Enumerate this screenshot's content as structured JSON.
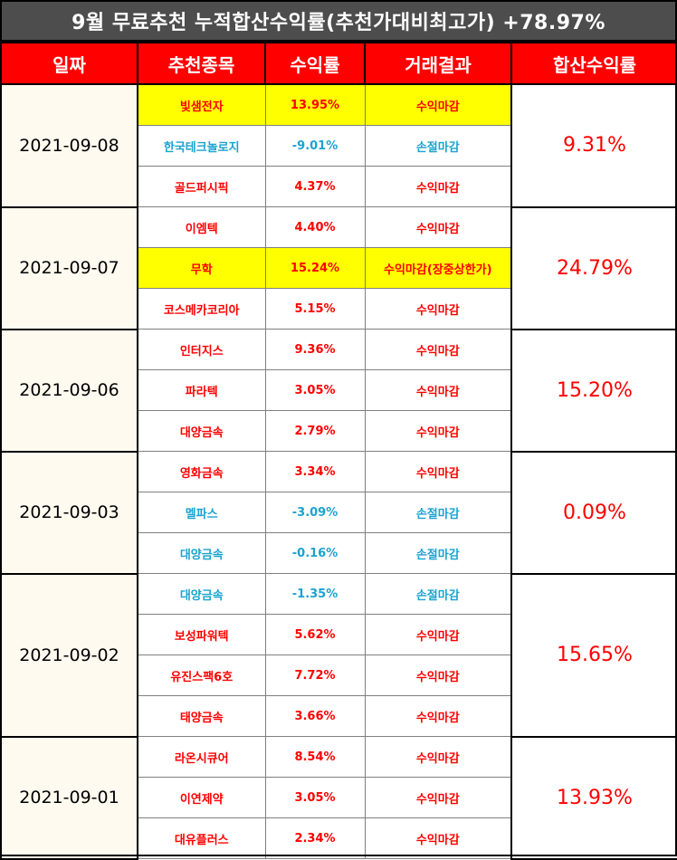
{
  "title": "9월 무료추천 누적합산수익률(추천가대비최고가) +78.97%",
  "headers": [
    "일짜",
    "추천종목",
    "수익률",
    "거래결과",
    "합산수익률"
  ],
  "colors": {
    "title_bg": "#4d4d4d",
    "header_bg": "#ff0000",
    "profit": "#ff0000",
    "loss": "#1aa3d1",
    "highlight": "#ffff00"
  },
  "groups": [
    {
      "date": "2021-09-08",
      "total": "9.31%",
      "rows": [
        {
          "name": "빛샘전자",
          "rate": "13.95%",
          "result": "수익마감",
          "type": "profit",
          "highlight": true
        },
        {
          "name": "한국테크놀로지",
          "rate": "-9.01%",
          "result": "손절마감",
          "type": "loss",
          "highlight": false
        },
        {
          "name": "골드퍼시픽",
          "rate": "4.37%",
          "result": "수익마감",
          "type": "profit",
          "highlight": false
        }
      ]
    },
    {
      "date": "2021-09-07",
      "total": "24.79%",
      "rows": [
        {
          "name": "이엠텍",
          "rate": "4.40%",
          "result": "수익마감",
          "type": "profit",
          "highlight": false
        },
        {
          "name": "무학",
          "rate": "15.24%",
          "result": "수익마감(장중상한가)",
          "type": "profit",
          "highlight": true
        },
        {
          "name": "코스메카코리아",
          "rate": "5.15%",
          "result": "수익마감",
          "type": "profit",
          "highlight": false
        }
      ]
    },
    {
      "date": "2021-09-06",
      "total": "15.20%",
      "rows": [
        {
          "name": "인터지스",
          "rate": "9.36%",
          "result": "수익마감",
          "type": "profit",
          "highlight": false
        },
        {
          "name": "파라텍",
          "rate": "3.05%",
          "result": "수익마감",
          "type": "profit",
          "highlight": false
        },
        {
          "name": "대양금속",
          "rate": "2.79%",
          "result": "수익마감",
          "type": "profit",
          "highlight": false
        }
      ]
    },
    {
      "date": "2021-09-03",
      "total": "0.09%",
      "rows": [
        {
          "name": "영화금속",
          "rate": "3.34%",
          "result": "수익마감",
          "type": "profit",
          "highlight": false
        },
        {
          "name": "멜파스",
          "rate": "-3.09%",
          "result": "손절마감",
          "type": "loss",
          "highlight": false
        },
        {
          "name": "대양금속",
          "rate": "-0.16%",
          "result": "손절마감",
          "type": "loss",
          "highlight": false
        }
      ]
    },
    {
      "date": "2021-09-02",
      "total": "15.65%",
      "rows": [
        {
          "name": "대양금속",
          "rate": "-1.35%",
          "result": "손절마감",
          "type": "loss",
          "highlight": false
        },
        {
          "name": "보성파워텍",
          "rate": "5.62%",
          "result": "수익마감",
          "type": "profit",
          "highlight": false
        },
        {
          "name": "유진스팩6호",
          "rate": "7.72%",
          "result": "수익마감",
          "type": "profit",
          "highlight": false
        },
        {
          "name": "태양금속",
          "rate": "3.66%",
          "result": "수익마감",
          "type": "profit",
          "highlight": false
        }
      ]
    },
    {
      "date": "2021-09-01",
      "total": "13.93%",
      "rows": [
        {
          "name": "라온시큐어",
          "rate": "8.54%",
          "result": "수익마감",
          "type": "profit",
          "highlight": false
        },
        {
          "name": "이연제약",
          "rate": "3.05%",
          "result": "수익마감",
          "type": "profit",
          "highlight": false
        },
        {
          "name": "대유플러스",
          "rate": "2.34%",
          "result": "수익마감",
          "type": "profit",
          "highlight": false
        }
      ]
    }
  ]
}
